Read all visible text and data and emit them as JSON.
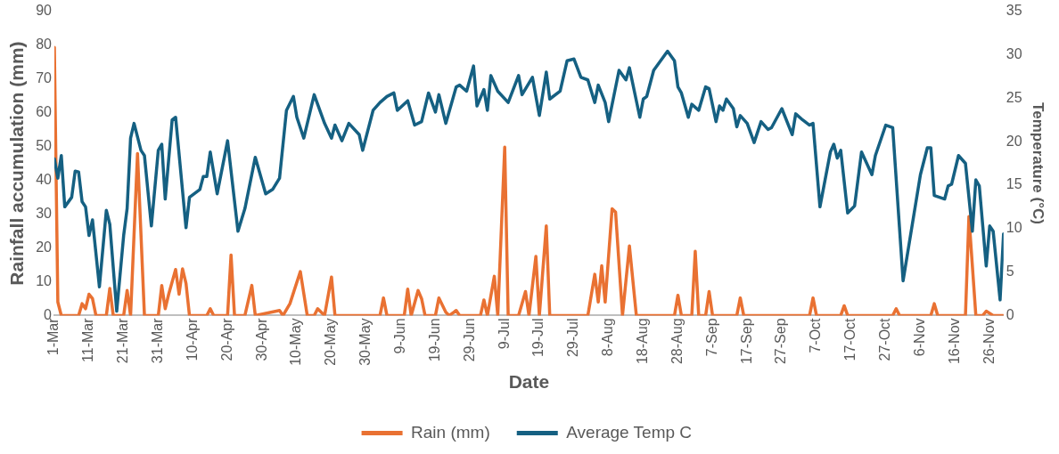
{
  "chart_data": {
    "type": "line",
    "xlabel": "Date",
    "ylabel": "Rainfall accumulation (mm)",
    "y2label": "Temperature (°C)",
    "xlim": [
      "--03-01",
      "--11-30"
    ],
    "xticks": [
      {
        "value": "--03-01",
        "label": "1-Mar"
      },
      {
        "value": "--03-11",
        "label": "11-Mar"
      },
      {
        "value": "--03-21",
        "label": "21-Mar"
      },
      {
        "value": "--03-31",
        "label": "31-Mar"
      },
      {
        "value": "--04-10",
        "label": "10-Apr"
      },
      {
        "value": "--04-20",
        "label": "20-Apr"
      },
      {
        "value": "--04-30",
        "label": "30-Apr"
      },
      {
        "value": "--05-10",
        "label": "10-May"
      },
      {
        "value": "--05-20",
        "label": "20-May"
      },
      {
        "value": "--05-30",
        "label": "30-May"
      },
      {
        "value": "--06-09",
        "label": "9-Jun"
      },
      {
        "value": "--06-19",
        "label": "19-Jun"
      },
      {
        "value": "--06-29",
        "label": "29-Jun"
      },
      {
        "value": "--07-09",
        "label": "9-Jul"
      },
      {
        "value": "--07-19",
        "label": "19-Jul"
      },
      {
        "value": "--07-29",
        "label": "29-Jul"
      },
      {
        "value": "--08-08",
        "label": "8-Aug"
      },
      {
        "value": "--08-18",
        "label": "18-Aug"
      },
      {
        "value": "--08-28",
        "label": "28-Aug"
      },
      {
        "value": "--09-07",
        "label": "7-Sep"
      },
      {
        "value": "--09-17",
        "label": "17-Sep"
      },
      {
        "value": "--09-27",
        "label": "27-Sep"
      },
      {
        "value": "--10-07",
        "label": "7-Oct"
      },
      {
        "value": "--10-17",
        "label": "17-Oct"
      },
      {
        "value": "--10-27",
        "label": "27-Oct"
      },
      {
        "value": "--11-06",
        "label": "6-Nov"
      },
      {
        "value": "--11-16",
        "label": "16-Nov"
      },
      {
        "value": "--11-26",
        "label": "26-Nov"
      }
    ],
    "ylim": [
      0,
      90
    ],
    "yticks": [
      0,
      10,
      20,
      30,
      40,
      50,
      60,
      70,
      80,
      90
    ],
    "y2lim": [
      0,
      35
    ],
    "y2ticks": [
      0,
      5,
      10,
      15,
      20,
      25,
      30,
      35
    ],
    "legend": "bottom",
    "marker": "none",
    "line_style": "solid",
    "series": [
      {
        "name": "Rain (mm)",
        "color": "#e97132",
        "x": [
          "--03-01",
          "--03-02",
          "--03-03",
          "--03-08",
          "--03-09",
          "--03-10",
          "--03-11",
          "--03-12",
          "--03-13",
          "--03-16",
          "--03-17",
          "--03-18",
          "--03-21",
          "--03-22",
          "--03-23",
          "--03-25",
          "--03-27",
          "--03-31",
          "--04-01",
          "--04-02",
          "--04-03",
          "--04-05",
          "--04-06",
          "--04-07",
          "--04-08",
          "--04-09",
          "--04-14",
          "--04-15",
          "--04-16",
          "--04-20",
          "--04-21",
          "--04-22",
          "--04-25",
          "--04-27",
          "--04-28",
          "--05-05",
          "--05-06",
          "--05-08",
          "--05-11",
          "--05-13",
          "--05-15",
          "--05-16",
          "--05-18",
          "--05-20",
          "--05-21",
          "--06-03",
          "--06-04",
          "--06-05",
          "--06-10",
          "--06-11",
          "--06-12",
          "--06-14",
          "--06-15",
          "--06-16",
          "--06-19",
          "--06-20",
          "--06-22",
          "--06-23",
          "--06-25",
          "--06-26",
          "--07-02",
          "--07-03",
          "--07-04",
          "--07-06",
          "--07-07",
          "--07-09",
          "--07-10",
          "--07-13",
          "--07-15",
          "--07-16",
          "--07-18",
          "--07-19",
          "--07-21",
          "--07-22",
          "--08-02",
          "--08-04",
          "--08-05",
          "--08-06",
          "--08-07",
          "--08-09",
          "--08-10",
          "--08-12",
          "--08-14",
          "--08-16",
          "--08-27",
          "--08-28",
          "--08-29",
          "--09-01",
          "--09-02",
          "--09-03",
          "--09-05",
          "--09-06",
          "--09-07",
          "--09-14",
          "--09-15",
          "--09-16",
          "--10-05",
          "--10-06",
          "--10-07",
          "--10-14",
          "--10-15",
          "--10-16",
          "--10-29",
          "--10-30",
          "--10-31",
          "--11-09",
          "--11-10",
          "--11-11",
          "--11-19",
          "--11-20",
          "--11-22",
          "--11-24",
          "--11-25",
          "--11-27",
          "--11-30"
        ],
        "values": [
          79.3,
          4,
          0,
          0,
          3.5,
          2,
          6.3,
          5,
          0,
          0,
          8,
          0,
          0,
          7.4,
          0,
          47.9,
          0,
          0,
          8.9,
          2,
          6.3,
          13.6,
          6.3,
          13.8,
          9.5,
          0,
          0,
          2,
          0,
          0,
          17.9,
          0,
          0,
          8.9,
          0,
          1.5,
          0,
          3.5,
          13,
          0,
          0,
          2,
          0,
          11.4,
          0,
          0,
          5.2,
          0,
          0,
          7.8,
          0,
          7.4,
          5,
          0,
          0,
          5.2,
          1,
          0,
          1.5,
          0,
          0,
          4.6,
          0,
          11.6,
          0,
          49.8,
          0,
          0,
          7.1,
          0,
          17.5,
          0,
          26.5,
          0,
          0,
          12.2,
          4,
          14.7,
          4,
          31.6,
          30.6,
          0,
          20.6,
          0,
          0,
          6,
          0,
          0,
          19,
          0,
          0,
          7.1,
          0,
          0,
          5.2,
          0,
          0,
          5.2,
          0,
          0,
          2.9,
          0,
          0,
          2,
          0,
          0,
          3.5,
          0,
          0,
          29.3,
          0,
          0,
          1.3,
          0,
          0
        ]
      },
      {
        "name": "Average Temp C",
        "color": "#156082",
        "axis": "y2",
        "x": [
          "--03-01",
          "--03-02",
          "--03-03",
          "--03-04",
          "--03-06",
          "--03-07",
          "--03-08",
          "--03-09",
          "--03-10",
          "--03-11",
          "--03-12",
          "--03-14",
          "--03-16",
          "--03-17",
          "--03-19",
          "--03-21",
          "--03-22",
          "--03-23",
          "--03-24",
          "--03-26",
          "--03-27",
          "--03-29",
          "--03-31",
          "--04-01",
          "--04-02",
          "--04-04",
          "--04-05",
          "--04-08",
          "--04-09",
          "--04-12",
          "--04-13",
          "--04-14",
          "--04-15",
          "--04-17",
          "--04-20",
          "--04-23",
          "--04-25",
          "--04-28",
          "--05-01",
          "--05-03",
          "--05-05",
          "--05-07",
          "--05-09",
          "--05-10",
          "--05-12",
          "--05-15",
          "--05-18",
          "--05-20",
          "--05-21",
          "--05-23",
          "--05-25",
          "--05-28",
          "--05-29",
          "--06-01",
          "--06-03",
          "--06-05",
          "--06-07",
          "--06-08",
          "--06-11",
          "--06-13",
          "--06-15",
          "--06-17",
          "--06-19",
          "--06-20",
          "--06-22",
          "--06-25",
          "--06-26",
          "--06-28",
          "--06-30",
          "--07-01",
          "--07-03",
          "--07-04",
          "--07-05",
          "--07-07",
          "--07-10",
          "--07-13",
          "--07-14",
          "--07-17",
          "--07-19",
          "--07-21",
          "--07-22",
          "--07-25",
          "--07-27",
          "--07-29",
          "--07-31",
          "--08-02",
          "--08-04",
          "--08-05",
          "--08-07",
          "--08-08",
          "--08-11",
          "--08-13",
          "--08-14",
          "--08-17",
          "--08-18",
          "--08-19",
          "--08-21",
          "--08-25",
          "--08-27",
          "--08-28",
          "--08-29",
          "--08-31",
          "--09-01",
          "--09-03",
          "--09-05",
          "--09-06",
          "--09-08",
          "--09-09",
          "--09-10",
          "--09-11",
          "--09-13",
          "--09-14",
          "--09-15",
          "--09-17",
          "--09-19",
          "--09-21",
          "--09-23",
          "--09-24",
          "--09-27",
          "--09-30",
          "--10-01",
          "--10-03",
          "--10-05",
          "--10-06",
          "--10-08",
          "--10-11",
          "--10-12",
          "--10-13",
          "--10-14",
          "--10-16",
          "--10-18",
          "--10-20",
          "--10-23",
          "--10-24",
          "--10-27",
          "--10-29",
          "--11-01",
          "--11-06",
          "--11-08",
          "--11-09",
          "--11-10",
          "--11-13",
          "--11-14",
          "--11-15",
          "--11-17",
          "--11-19",
          "--11-21",
          "--11-22",
          "--11-23",
          "--11-25",
          "--11-26",
          "--11-27",
          "--11-29",
          "--11-30"
        ],
        "values": [
          18,
          15.8,
          18.4,
          12.5,
          13.6,
          16.6,
          16.5,
          13.1,
          12.5,
          9.2,
          11,
          3.3,
          12.1,
          10.5,
          0.5,
          9.2,
          12.3,
          20.4,
          22.1,
          19,
          18.4,
          10.3,
          19,
          19.7,
          13.4,
          22.5,
          22.8,
          10.1,
          13.6,
          14.5,
          16,
          16,
          18.8,
          14,
          20.1,
          9.7,
          12.3,
          18.2,
          14,
          14.5,
          15.8,
          23.6,
          25.2,
          22.8,
          20.4,
          25.4,
          22.1,
          20.4,
          21.9,
          20.1,
          22.1,
          20.8,
          19,
          23.6,
          24.5,
          25.2,
          25.6,
          23.6,
          24.7,
          21.9,
          22.3,
          25.6,
          23.4,
          25.4,
          22.1,
          26.3,
          26.5,
          25.8,
          28.7,
          24.1,
          26,
          23.6,
          27.6,
          25.8,
          24.5,
          27.6,
          25.4,
          27.4,
          23,
          28,
          24.9,
          25.8,
          29.3,
          29.5,
          27.4,
          27.1,
          24.5,
          26.5,
          24.5,
          22.3,
          28.2,
          27.1,
          28.5,
          22.8,
          24.9,
          25.2,
          28.2,
          30.4,
          29.3,
          26.3,
          25.6,
          22.8,
          24.3,
          23.6,
          26.3,
          26.1,
          22.3,
          24.1,
          23.6,
          24.9,
          23.8,
          21.7,
          23,
          22.1,
          19.9,
          22.3,
          21.4,
          21.6,
          23.8,
          20.8,
          23.2,
          22.5,
          21.9,
          22.1,
          12.5,
          18.8,
          19.7,
          18.1,
          19,
          11.8,
          12.6,
          18.8,
          16.2,
          18.4,
          21.9,
          21.6,
          4,
          16.2,
          19.3,
          19.3,
          13.8,
          13.4,
          14.9,
          15.1,
          18.4,
          17.5,
          9.7,
          15.6,
          14.9,
          5.7,
          10.3,
          9.7,
          1.8,
          9.4
        ]
      }
    ]
  }
}
